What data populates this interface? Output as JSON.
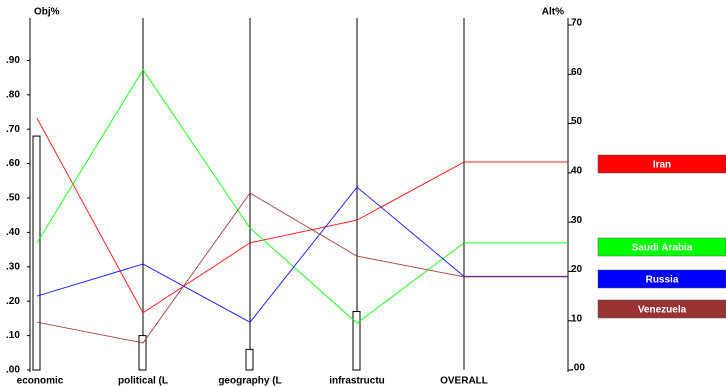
{
  "chart_data": {
    "type": "line",
    "ylabel": "Obj%",
    "y2label": "Alt%",
    "categories": [
      "economic",
      "political (L",
      "geography (L",
      "infrastructu",
      "OVERALL"
    ],
    "ylim": [
      0,
      1
    ],
    "yticks": [
      {
        "value": 0,
        "label": ".00"
      },
      {
        "value": 0.1,
        "label": ".10"
      },
      {
        "value": 0.2,
        "label": ".20"
      },
      {
        "value": 0.3,
        "label": ".30"
      },
      {
        "value": 0.4,
        "label": ".40"
      },
      {
        "value": 0.5,
        "label": ".50"
      },
      {
        "value": 0.6,
        "label": ".60"
      },
      {
        "value": 0.7,
        "label": ".70"
      },
      {
        "value": 0.8,
        "label": ".80"
      },
      {
        "value": 0.9,
        "label": ".90"
      }
    ],
    "y2lim": [
      0,
      70
    ],
    "y2ticks": [
      {
        "value": 0,
        "label": ".00"
      },
      10,
      20,
      30,
      40,
      50,
      60,
      70
    ],
    "priorities": [
      0.68,
      0.1,
      0.06,
      0.17,
      null
    ],
    "series": [
      {
        "name": "Iran",
        "color": "#ff0000",
        "axis": "y2",
        "values": [
          51.1,
          11.6,
          25.8,
          30.4,
          42.2
        ]
      },
      {
        "name": "Saudi Arabia",
        "color": "#00ff00",
        "axis": "y2",
        "values": [
          25.8,
          60.9,
          28.8,
          9.5,
          25.8
        ]
      },
      {
        "name": "Russia",
        "color": "#0000ff",
        "axis": "y2",
        "values": [
          15.0,
          21.5,
          9.7,
          37.1,
          19.0
        ]
      },
      {
        "name": "Venezuela",
        "color": "#993333",
        "axis": "y2",
        "values": [
          9.7,
          5.5,
          35.9,
          23.1,
          18.9
        ]
      }
    ]
  }
}
